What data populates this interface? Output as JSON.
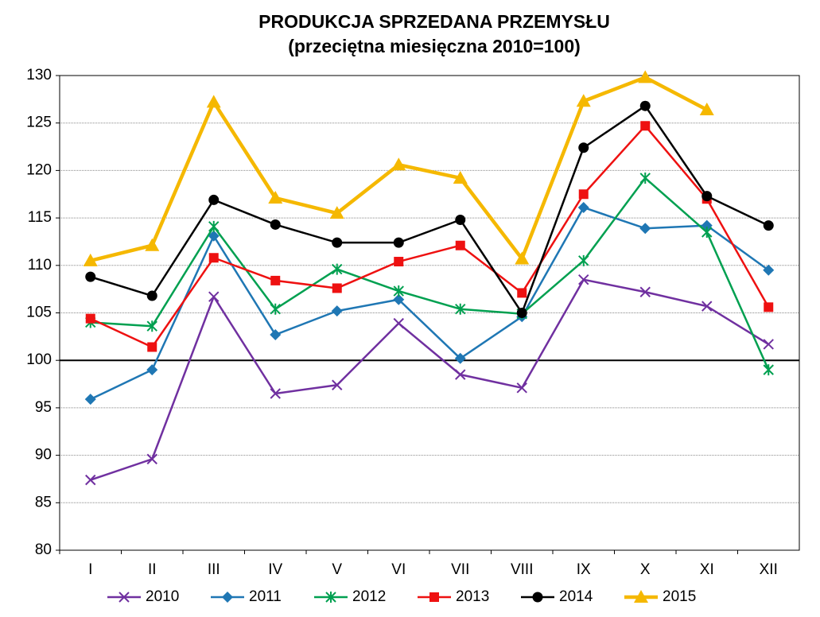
{
  "chart_data": {
    "type": "line",
    "title": "PRODUKCJA SPRZEDANA PRZEMYSŁU",
    "subtitle": "(przeciętna miesięczna 2010=100)",
    "categories": [
      "I",
      "II",
      "III",
      "IV",
      "V",
      "VI",
      "VII",
      "VIII",
      "IX",
      "X",
      "XI",
      "XII"
    ],
    "series": [
      {
        "name": "2010",
        "color": "#7030a0",
        "marker": "x",
        "values": [
          87.4,
          89.6,
          106.7,
          96.5,
          97.4,
          103.9,
          98.5,
          97.1,
          108.5,
          107.2,
          105.7,
          101.7
        ]
      },
      {
        "name": "2011",
        "color": "#1f77b4",
        "marker": "diamond",
        "values": [
          95.9,
          99.0,
          113.1,
          102.7,
          105.2,
          106.4,
          100.2,
          104.6,
          116.1,
          113.9,
          114.2,
          109.5
        ]
      },
      {
        "name": "2012",
        "color": "#00a050",
        "marker": "star",
        "values": [
          104.0,
          103.6,
          114.1,
          105.4,
          109.6,
          107.3,
          105.4,
          104.9,
          110.5,
          119.2,
          113.5,
          99.0
        ]
      },
      {
        "name": "2013",
        "color": "#ee1111",
        "marker": "square",
        "values": [
          104.4,
          101.4,
          110.8,
          108.4,
          107.6,
          110.4,
          112.1,
          107.1,
          117.5,
          124.7,
          117.0,
          105.6
        ]
      },
      {
        "name": "2014",
        "color": "#000000",
        "marker": "circle",
        "values": [
          108.8,
          106.8,
          116.9,
          114.3,
          112.4,
          112.4,
          114.8,
          105.0,
          122.4,
          126.8,
          117.3,
          114.2
        ]
      },
      {
        "name": "2015",
        "color": "#f5b800",
        "marker": "triangle",
        "values": [
          110.5,
          112.1,
          127.2,
          117.1,
          115.5,
          120.6,
          119.2,
          110.7,
          127.3,
          129.8,
          126.4,
          null
        ]
      }
    ],
    "ylim": [
      80,
      130
    ],
    "yticks": [
      80,
      85,
      90,
      95,
      100,
      105,
      110,
      115,
      120,
      125,
      130
    ],
    "baseline": 100,
    "grid": true,
    "legend": "bottom"
  }
}
